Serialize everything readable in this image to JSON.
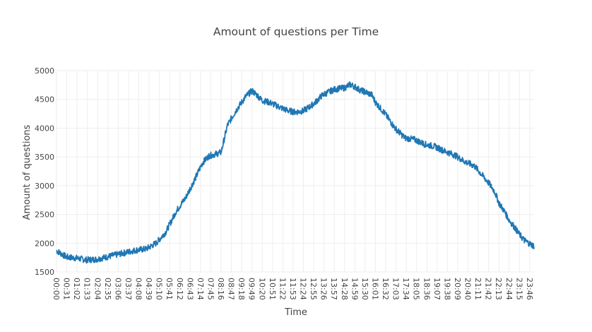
{
  "chart_data": {
    "type": "line",
    "title": "Amount of questions per Time",
    "xlabel": "Time",
    "ylabel": "Amount of questions",
    "ylim": [
      1500,
      5000
    ],
    "yticks": [
      1500,
      2000,
      2500,
      3000,
      3500,
      4000,
      4500,
      5000
    ],
    "x_range_minutes": [
      0,
      1439
    ],
    "xtick_labels": [
      "00:00",
      "00:31",
      "01:02",
      "01:33",
      "02:04",
      "02:35",
      "03:06",
      "03:37",
      "04:08",
      "04:39",
      "05:10",
      "05:41",
      "06:12",
      "06:43",
      "07:14",
      "07:45",
      "08:16",
      "08:47",
      "09:18",
      "09:49",
      "10:20",
      "10:51",
      "11:22",
      "11:53",
      "12:24",
      "12:55",
      "13:26",
      "13:57",
      "14:28",
      "14:59",
      "15:30",
      "16:01",
      "16:32",
      "17:03",
      "17:34",
      "18:05",
      "18:36",
      "19:07",
      "19:38",
      "20:09",
      "20:40",
      "21:11",
      "21:42",
      "22:13",
      "22:44",
      "23:15",
      "23:46"
    ],
    "grid": true,
    "colors": {
      "line": "#1f77b4",
      "grid": "#eeeeee",
      "text": "#444444"
    },
    "series": [
      {
        "x": [
          "00:00",
          "00:30",
          "01:00",
          "01:30",
          "02:00",
          "02:30",
          "03:00",
          "03:30",
          "04:00",
          "04:30",
          "05:00",
          "05:30",
          "06:00",
          "06:30",
          "07:00",
          "07:20",
          "07:40",
          "08:00",
          "08:16",
          "08:35",
          "09:00",
          "09:30",
          "09:49",
          "10:05",
          "10:20",
          "10:40",
          "11:00",
          "11:22",
          "11:40",
          "12:00",
          "12:24",
          "12:45",
          "13:00",
          "13:20",
          "13:40",
          "14:00",
          "14:28",
          "14:45",
          "14:59",
          "15:15",
          "15:30",
          "15:50",
          "16:01",
          "16:30",
          "17:00",
          "17:30",
          "18:00",
          "18:30",
          "19:00",
          "19:30",
          "20:00",
          "20:30",
          "21:00",
          "21:20",
          "21:42",
          "22:00",
          "22:13",
          "22:30",
          "22:44",
          "23:00",
          "23:15",
          "23:30",
          "23:46",
          "23:59"
        ],
        "y": [
          1870,
          1760,
          1740,
          1710,
          1720,
          1760,
          1800,
          1840,
          1880,
          1900,
          2000,
          2200,
          2550,
          2800,
          3150,
          3400,
          3520,
          3550,
          3580,
          4050,
          4300,
          4550,
          4650,
          4570,
          4480,
          4450,
          4400,
          4340,
          4300,
          4280,
          4300,
          4380,
          4450,
          4570,
          4630,
          4680,
          4700,
          4760,
          4720,
          4660,
          4630,
          4580,
          4450,
          4250,
          4000,
          3830,
          3800,
          3720,
          3680,
          3600,
          3530,
          3420,
          3340,
          3200,
          3050,
          2900,
          2700,
          2550,
          2400,
          2280,
          2150,
          2050,
          1990,
          1950
        ]
      }
    ]
  }
}
